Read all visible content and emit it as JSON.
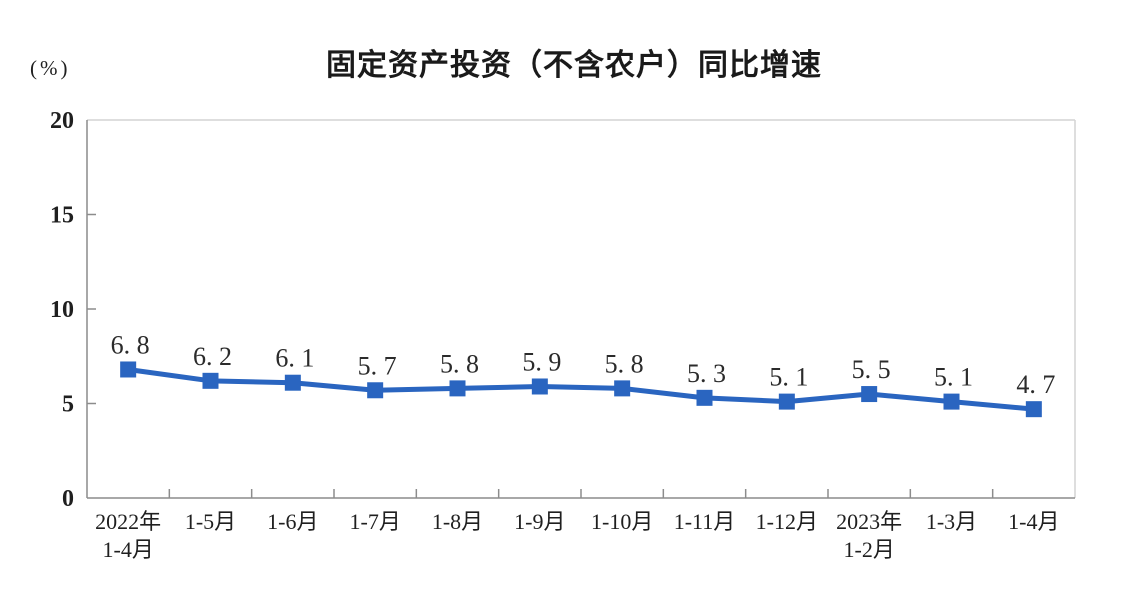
{
  "chart_data": {
    "type": "line",
    "title": "固定资产投资（不含农户）同比增速",
    "unit_label": "(%)",
    "categories": [
      "2022年\n1-4月",
      "1-5月",
      "1-6月",
      "1-7月",
      "1-8月",
      "1-9月",
      "1-10月",
      "1-11月",
      "1-12月",
      "2023年\n1-2月",
      "1-3月",
      "1-4月"
    ],
    "values": [
      6.8,
      6.2,
      6.1,
      5.7,
      5.8,
      5.9,
      5.8,
      5.3,
      5.1,
      5.5,
      5.1,
      4.7
    ],
    "point_labels": [
      "6. 8",
      "6. 2",
      "6. 1",
      "5. 7",
      "5. 8",
      "5. 9",
      "5. 8",
      "5. 3",
      "5. 1",
      "5. 5",
      "5. 1",
      "4. 7"
    ],
    "ylim": [
      0,
      20
    ],
    "yticks": [
      0,
      5,
      10,
      15,
      20
    ],
    "grid": false,
    "legend": "none",
    "colors": {
      "line": "#2a65c0",
      "marker": "#2a65c0",
      "axis": "#8c8c8c",
      "border": "#d4d4d4",
      "text": "#1f1f1f"
    }
  }
}
